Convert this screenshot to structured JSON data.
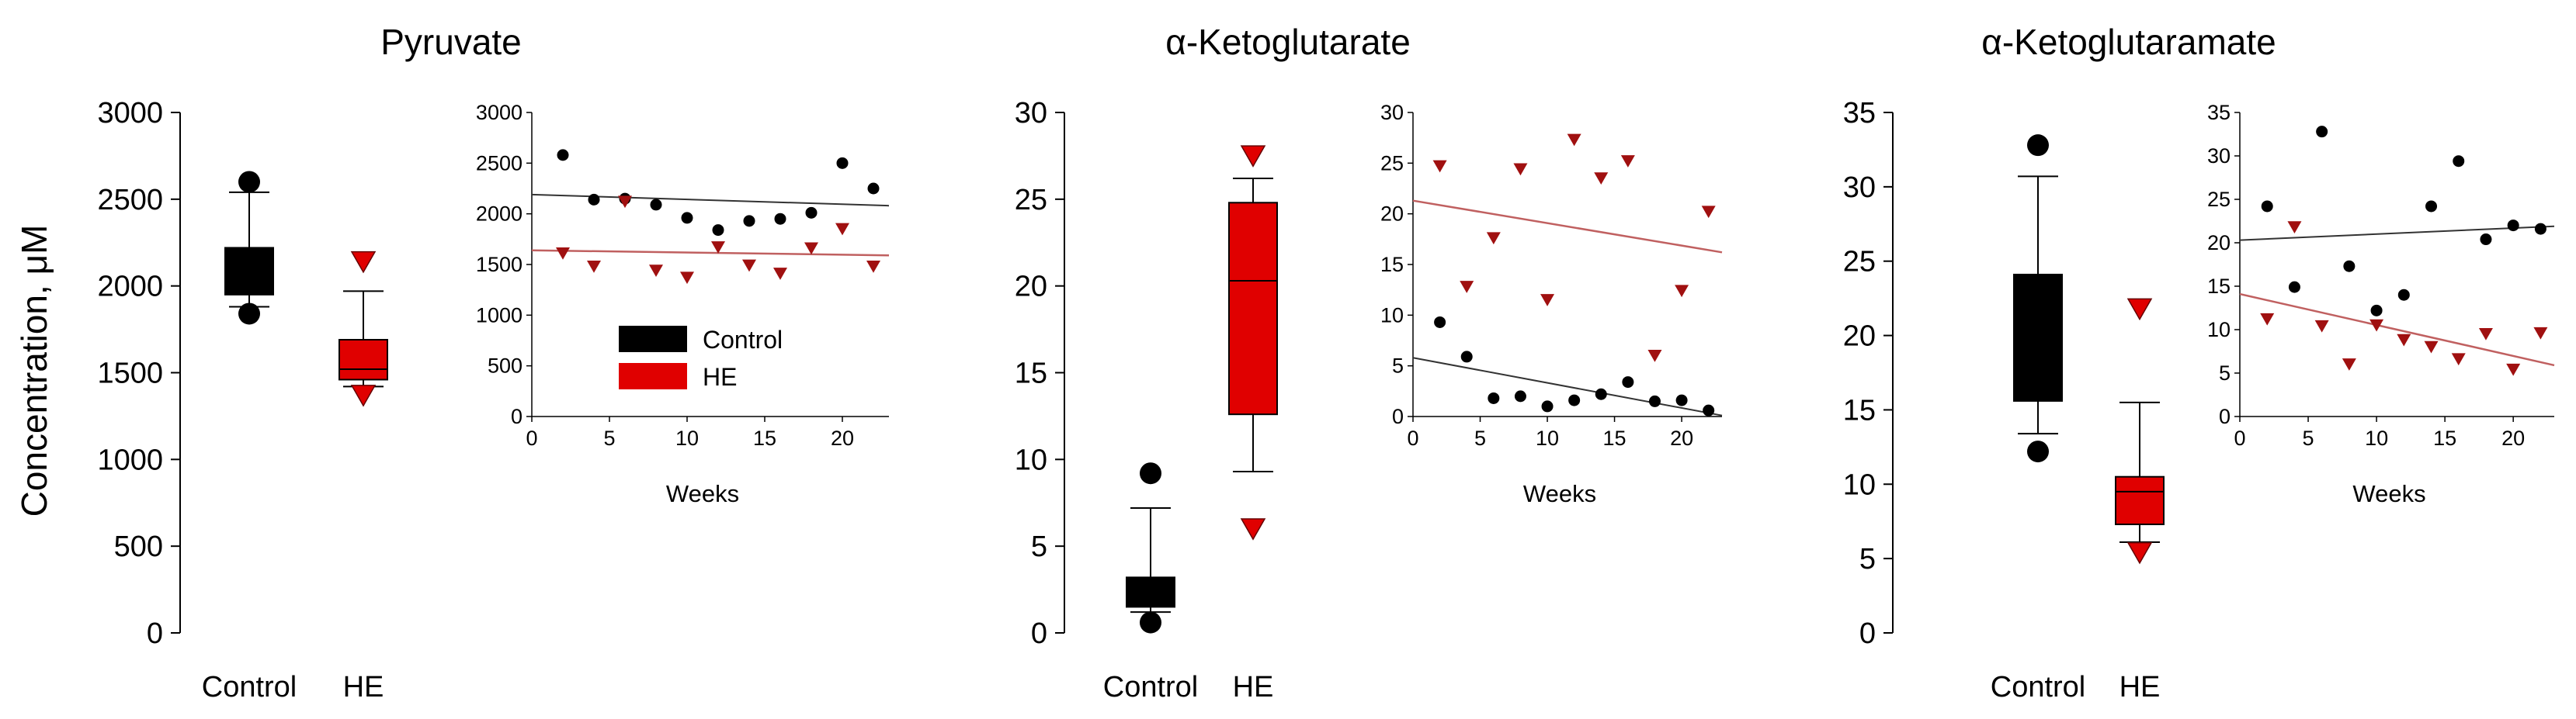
{
  "figure": {
    "y_axis_label": "Concentration, μM",
    "colors": {
      "control": "#000000",
      "he": "#e00000",
      "he_marker": "#a01010",
      "he_line": "#c06060"
    }
  },
  "chart_data": [
    {
      "type": "box",
      "title": "Pyruvate",
      "categories": [
        "Control",
        "HE"
      ],
      "ylim": [
        0,
        3000
      ],
      "yticks": [
        "0",
        "500",
        "1000",
        "1500",
        "2000",
        "2500",
        "3000"
      ],
      "boxes": [
        {
          "name": "Control",
          "whisker_low": 1880,
          "q1": 1950,
          "median": 2000,
          "q3": 2220,
          "whisker_high": 2540,
          "outliers": [
            1840,
            2600
          ]
        },
        {
          "name": "HE",
          "whisker_low": 1420,
          "q1": 1460,
          "median": 1520,
          "q3": 1690,
          "whisker_high": 1970,
          "outliers": [
            1370,
            2140
          ]
        }
      ],
      "inset": {
        "type": "scatter",
        "xlabel": "Weeks",
        "xlim": [
          0,
          23
        ],
        "ylim": [
          0,
          3000
        ],
        "xticks": [
          "0",
          "5",
          "10",
          "15",
          "20"
        ],
        "yticks": [
          "0",
          "500",
          "1000",
          "1500",
          "2000",
          "2500",
          "3000"
        ],
        "legend": [
          "Control",
          "HE"
        ],
        "series": [
          {
            "name": "Control",
            "x": [
              2,
              4,
              6,
              8,
              10,
              12,
              14,
              16,
              18,
              20,
              22
            ],
            "y": [
              2580,
              2140,
              2150,
              2090,
              1960,
              1840,
              1930,
              1950,
              2010,
              2500,
              2250
            ],
            "fit": [
              2190,
              2080
            ]
          },
          {
            "name": "HE",
            "x": [
              2,
              4,
              6,
              8,
              10,
              12,
              14,
              16,
              18,
              20,
              22
            ],
            "y": [
              1610,
              1480,
              2120,
              1440,
              1370,
              1670,
              1490,
              1410,
              1660,
              1850,
              1480
            ],
            "fit": [
              1640,
              1590
            ]
          }
        ]
      }
    },
    {
      "type": "box",
      "title": "α-Ketoglutarate",
      "categories": [
        "Control",
        "HE"
      ],
      "ylim": [
        0,
        30
      ],
      "yticks": [
        "0",
        "5",
        "10",
        "15",
        "20",
        "25",
        "30"
      ],
      "boxes": [
        {
          "name": "Control",
          "whisker_low": 1.2,
          "q1": 1.5,
          "median": 2.3,
          "q3": 3.2,
          "whisker_high": 7.2,
          "outliers": [
            0.6,
            9.2
          ]
        },
        {
          "name": "HE",
          "whisker_low": 9.3,
          "q1": 12.6,
          "median": 20.3,
          "q3": 24.8,
          "whisker_high": 26.2,
          "outliers": [
            6.0,
            27.5
          ]
        }
      ],
      "inset": {
        "type": "scatter",
        "xlabel": "Weeks",
        "xlim": [
          0,
          23
        ],
        "ylim": [
          0,
          30
        ],
        "xticks": [
          "0",
          "5",
          "10",
          "15",
          "20"
        ],
        "yticks": [
          "0",
          "5",
          "10",
          "15",
          "20",
          "25",
          "30"
        ],
        "series": [
          {
            "name": "Control",
            "x": [
              2,
              4,
              6,
              8,
              10,
              12,
              14,
              16,
              18,
              20,
              22
            ],
            "y": [
              9.3,
              5.9,
              1.8,
              2.0,
              1.0,
              1.6,
              2.2,
              3.4,
              1.5,
              1.6,
              0.6
            ],
            "fit": [
              5.8,
              0.1
            ]
          },
          {
            "name": "HE",
            "x": [
              2,
              4,
              6,
              8,
              10,
              12,
              14,
              16,
              18,
              20,
              22
            ],
            "y": [
              24.7,
              12.8,
              17.6,
              24.4,
              11.5,
              27.3,
              23.5,
              25.2,
              6.0,
              12.4,
              20.2
            ],
            "fit": [
              21.3,
              16.2
            ]
          }
        ]
      }
    },
    {
      "type": "box",
      "title": "α-Ketoglutaramate",
      "categories": [
        "Control",
        "HE"
      ],
      "ylim": [
        0,
        35
      ],
      "yticks": [
        "0",
        "5",
        "10",
        "15",
        "20",
        "25",
        "30",
        "35"
      ],
      "boxes": [
        {
          "name": "Control",
          "whisker_low": 13.4,
          "q1": 15.6,
          "median": 19.5,
          "q3": 24.1,
          "whisker_high": 30.7,
          "outliers": [
            12.2,
            32.8
          ]
        },
        {
          "name": "HE",
          "whisker_low": 6.1,
          "q1": 7.3,
          "median": 9.5,
          "q3": 10.5,
          "whisker_high": 15.5,
          "outliers": [
            5.4,
            21.8
          ]
        }
      ],
      "inset": {
        "type": "scatter",
        "xlabel": "Weeks",
        "xlim": [
          0,
          23
        ],
        "ylim": [
          0,
          35
        ],
        "xticks": [
          "0",
          "5",
          "10",
          "15",
          "20"
        ],
        "yticks": [
          "0",
          "5",
          "10",
          "15",
          "20",
          "25",
          "30",
          "35"
        ],
        "series": [
          {
            "name": "Control",
            "x": [
              2,
              4,
              6,
              8,
              10,
              12,
              14,
              16,
              18,
              20,
              22
            ],
            "y": [
              24.2,
              14.9,
              32.8,
              17.3,
              12.2,
              14.0,
              24.2,
              29.4,
              20.4,
              22.0,
              21.6
            ],
            "fit": [
              20.3,
              21.9
            ]
          },
          {
            "name": "HE",
            "x": [
              2,
              4,
              6,
              8,
              10,
              12,
              14,
              16,
              18,
              20,
              22
            ],
            "y": [
              11.2,
              21.8,
              10.4,
              6.0,
              10.5,
              8.8,
              8.0,
              6.6,
              9.5,
              5.4,
              9.6
            ],
            "fit": [
              14.1,
              5.9
            ]
          }
        ]
      }
    }
  ]
}
